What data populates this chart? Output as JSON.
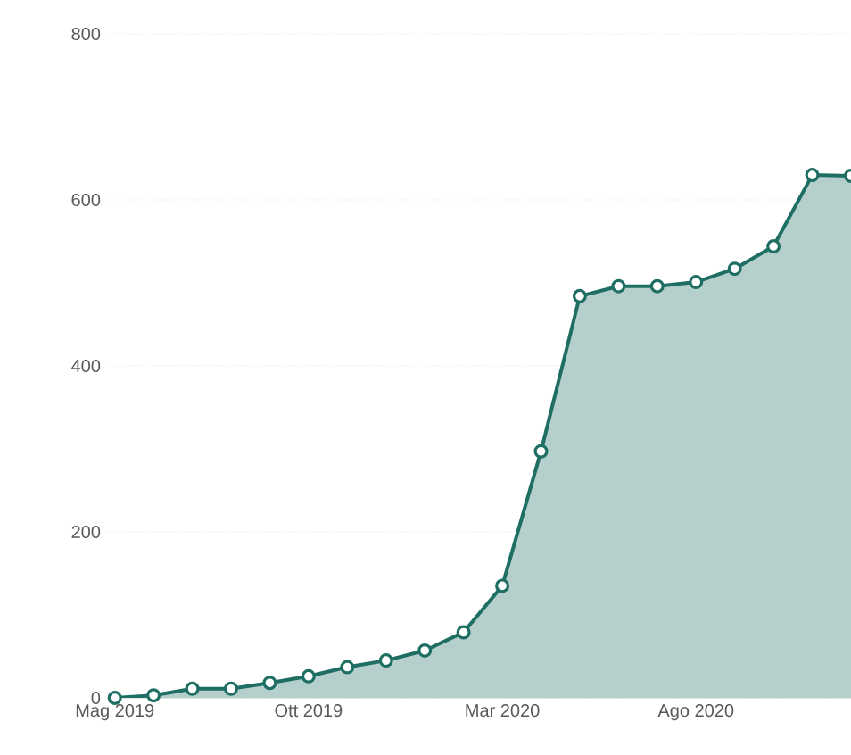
{
  "chart_data": {
    "type": "area",
    "x": [
      "2019-05",
      "2019-06",
      "2019-07",
      "2019-08",
      "2019-09",
      "2019-10",
      "2019-11",
      "2019-12",
      "2020-01",
      "2020-02",
      "2020-03",
      "2020-04",
      "2020-05",
      "2020-06",
      "2020-07",
      "2020-08",
      "2020-09",
      "2020-10",
      "2020-11",
      "2020-12"
    ],
    "series": [
      {
        "color": "#1f6e64",
        "values": [
          0,
          3,
          11,
          11,
          18,
          26,
          37,
          45,
          57,
          79,
          135,
          297,
          484,
          496,
          496,
          501,
          517,
          544,
          630,
          629
        ]
      }
    ],
    "xlim": [
      "2019-04-25",
      "2020-12-01"
    ],
    "ylim": [
      0,
      800
    ],
    "xticks": [
      {
        "value": "2019-05",
        "label": "Mag 2019"
      },
      {
        "value": "2019-10",
        "label": "Ott 2019"
      },
      {
        "value": "2020-03",
        "label": "Mar 2020"
      },
      {
        "value": "2020-08",
        "label": "Ago 2020"
      }
    ],
    "yticks": [
      0,
      200,
      400,
      600,
      800
    ],
    "grid": "y",
    "marker": "circle",
    "line_style": "solid"
  }
}
